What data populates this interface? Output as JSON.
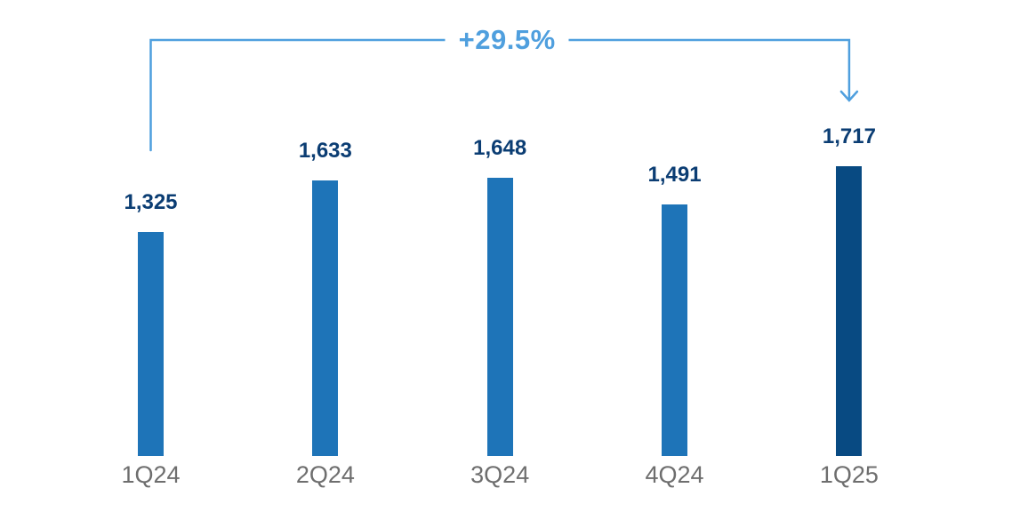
{
  "chart_data": {
    "type": "bar",
    "title": "",
    "xlabel": "",
    "ylabel": "",
    "categories": [
      "1Q24",
      "2Q24",
      "3Q24",
      "4Q24",
      "1Q25"
    ],
    "values": [
      1325,
      1633,
      1648,
      1491,
      1717
    ],
    "value_labels": [
      "1,325",
      "1,633",
      "1,648",
      "1,491",
      "1,717"
    ],
    "highlight_index": 4,
    "annotation": {
      "label": "+29.5%",
      "from_category": "1Q24",
      "to_category": "1Q25"
    },
    "colors": {
      "bar": "#1E74B8",
      "highlight_bar": "#084A82",
      "value_label": "#0B3D73",
      "axis_label": "#6E6E6E",
      "accent": "#4F9FDE",
      "background": "#FFFFFF"
    },
    "ylim": [
      0,
      2000
    ],
    "grid": false,
    "legend": false
  }
}
